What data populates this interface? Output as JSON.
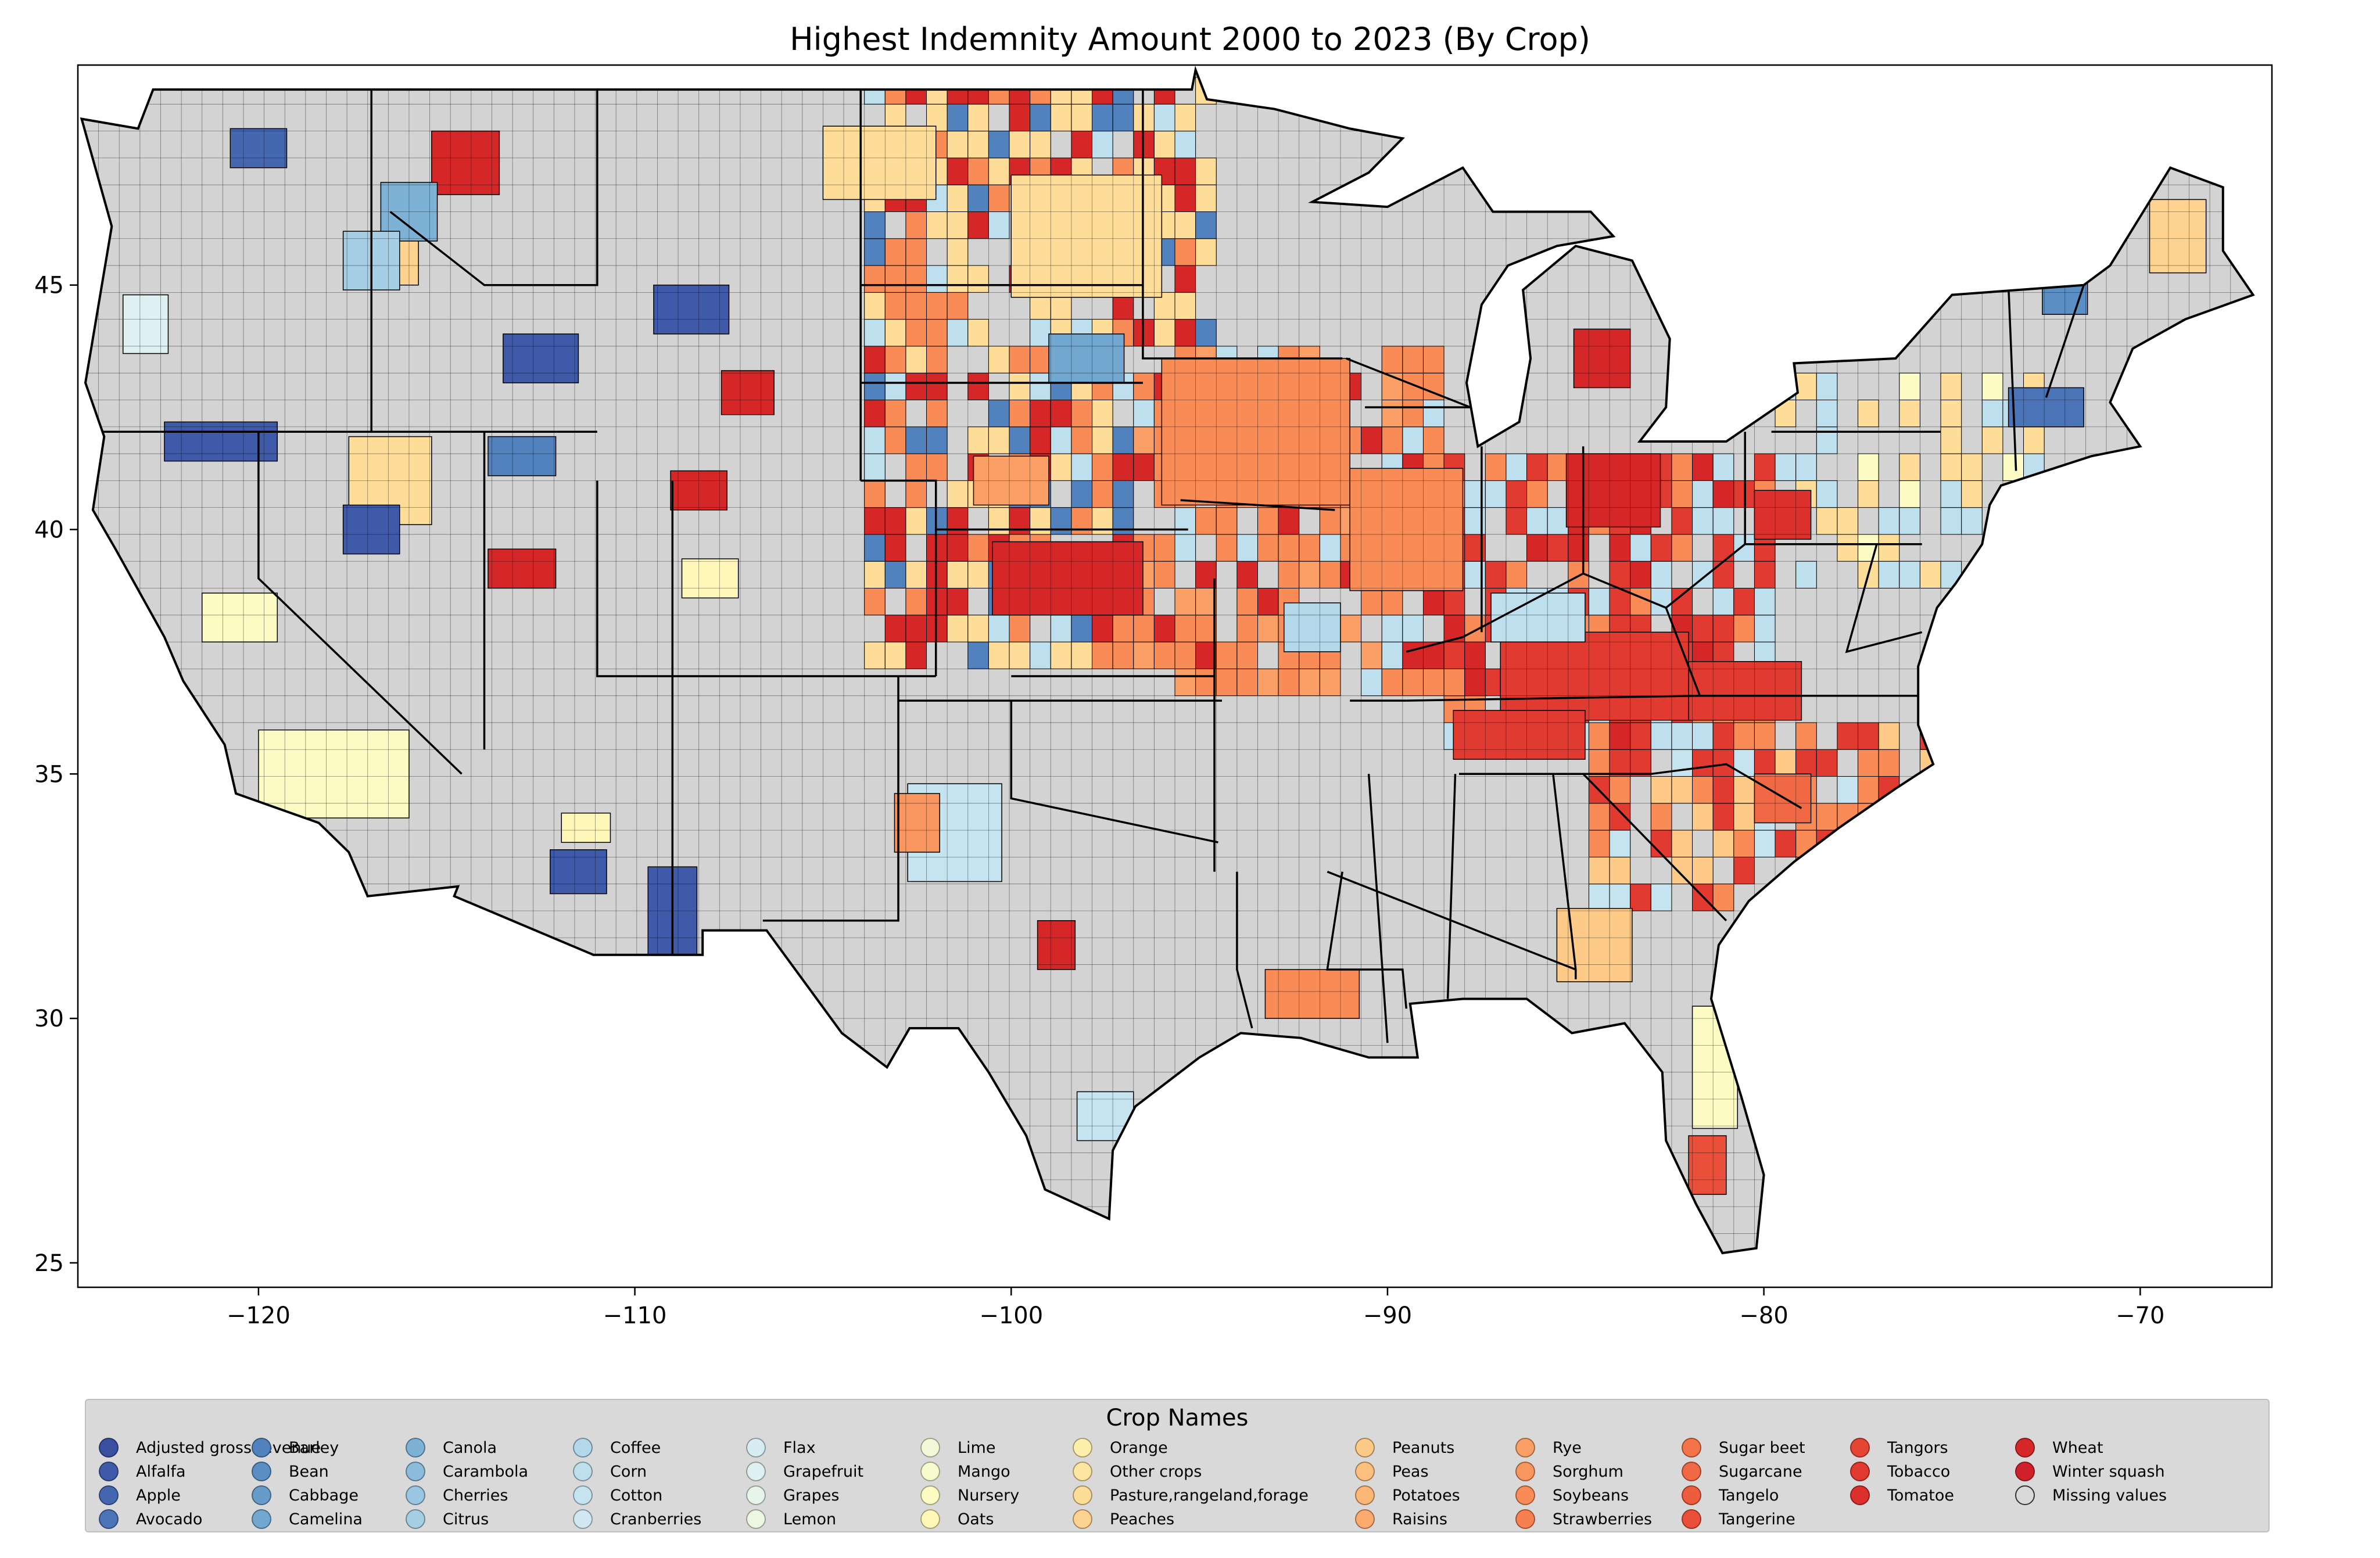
{
  "chart_data": {
    "type": "choropleth",
    "title": "Highest Indemnity Amount 2000 to 2023 (By Crop)",
    "xlabel": "",
    "ylabel": "",
    "xlim": [
      -124.8,
      -66.5
    ],
    "ylim": [
      24.5,
      49.5
    ],
    "x_ticks": [
      -120,
      -110,
      -100,
      -90,
      -80,
      -70
    ],
    "x_tick_labels": [
      "−120",
      "−110",
      "−100",
      "−90",
      "−80",
      "−70"
    ],
    "y_ticks": [
      25,
      30,
      35,
      40,
      45
    ],
    "y_tick_labels": [
      "25",
      "30",
      "35",
      "40",
      "45"
    ],
    "grid": false,
    "legend": {
      "title": "Crop Names",
      "placement": "bottom",
      "columns": 10,
      "entries": [
        {
          "name": "Adjusted gross revenue",
          "color": "#3b4fa0"
        },
        {
          "name": "Alfalfa",
          "color": "#3f5aa8"
        },
        {
          "name": "Apple",
          "color": "#4567b0"
        },
        {
          "name": "Avocado",
          "color": "#4a74b7"
        },
        {
          "name": "Barley",
          "color": "#5282be"
        },
        {
          "name": "Bean",
          "color": "#5b8fc4"
        },
        {
          "name": "Cabbage",
          "color": "#679cca"
        },
        {
          "name": "Camelina",
          "color": "#72a7d0"
        },
        {
          "name": "Canola",
          "color": "#7db2d6"
        },
        {
          "name": "Carambola",
          "color": "#8bbcdb"
        },
        {
          "name": "Cherries",
          "color": "#99c6e0"
        },
        {
          "name": "Citrus",
          "color": "#a6cfe5"
        },
        {
          "name": "Coffee",
          "color": "#b2d8ea"
        },
        {
          "name": "Corn",
          "color": "#bddfee"
        },
        {
          "name": "Cotton",
          "color": "#c6e4f0"
        },
        {
          "name": "Cranberries",
          "color": "#cfe8f2"
        },
        {
          "name": "Flax",
          "color": "#d8ecf3"
        },
        {
          "name": "Grapefruit",
          "color": "#dff0f0"
        },
        {
          "name": "Grapes",
          "color": "#e6f4ea"
        },
        {
          "name": "Lemon",
          "color": "#ecf6e2"
        },
        {
          "name": "Lime",
          "color": "#f3f9d8"
        },
        {
          "name": "Mango",
          "color": "#f8fbcd"
        },
        {
          "name": "Nursery",
          "color": "#fcfbc3"
        },
        {
          "name": "Oats",
          "color": "#fff7b8"
        },
        {
          "name": "Orange",
          "color": "#ffefac"
        },
        {
          "name": "Other crops",
          "color": "#fee6a2"
        },
        {
          "name": "Pasture,rangeland,forage",
          "color": "#fedd99"
        },
        {
          "name": "Peaches",
          "color": "#fdd38f"
        },
        {
          "name": "Peanuts",
          "color": "#fdca87"
        },
        {
          "name": "Peas",
          "color": "#fcc07e"
        },
        {
          "name": "Potatoes",
          "color": "#fcb676"
        },
        {
          "name": "Raisins",
          "color": "#fbab6e"
        },
        {
          "name": "Rye",
          "color": "#faa066"
        },
        {
          "name": "Sorghum",
          "color": "#f9955e"
        },
        {
          "name": "Soybeans",
          "color": "#f88b56"
        },
        {
          "name": "Strawberries",
          "color": "#f6804f"
        },
        {
          "name": "Sugar beet",
          "color": "#f47449"
        },
        {
          "name": "Sugarcane",
          "color": "#f16844"
        },
        {
          "name": "Tangelo",
          "color": "#ee5c3e"
        },
        {
          "name": "Tangerine",
          "color": "#ea5039"
        },
        {
          "name": "Tangors",
          "color": "#e64534"
        },
        {
          "name": "Tobacco",
          "color": "#e13a30"
        },
        {
          "name": "Tomatoe",
          "color": "#dc302c"
        },
        {
          "name": "Wheat",
          "color": "#d62728"
        },
        {
          "name": "Winter squash",
          "color": "#d0212a"
        },
        {
          "name": "Missing values",
          "color": "#d3d3d3"
        }
      ]
    },
    "regions": [
      {
        "crop": "Tobacco",
        "lon": -84.5,
        "lat": 37.0,
        "w": 5.0,
        "h": 1.8
      },
      {
        "crop": "Tobacco",
        "lon": -80.5,
        "lat": 36.7,
        "w": 3.0,
        "h": 1.2
      },
      {
        "crop": "Tobacco",
        "lon": -86.5,
        "lat": 35.8,
        "w": 3.5,
        "h": 1.0
      },
      {
        "crop": "Soybeans",
        "lon": -93.5,
        "lat": 42.0,
        "w": 5.0,
        "h": 3.0
      },
      {
        "crop": "Soybeans",
        "lon": -89.5,
        "lat": 40.0,
        "w": 3.0,
        "h": 2.5
      },
      {
        "crop": "Soybeans",
        "lon": -92.0,
        "lat": 30.5,
        "w": 2.5,
        "h": 1.0
      },
      {
        "crop": "Corn",
        "lon": -86.0,
        "lat": 38.2,
        "w": 2.5,
        "h": 1.0
      },
      {
        "crop": "Wheat",
        "lon": -98.5,
        "lat": 39.0,
        "w": 4.0,
        "h": 1.5
      },
      {
        "crop": "Wheat",
        "lon": -84.0,
        "lat": 40.8,
        "w": 2.5,
        "h": 1.5
      },
      {
        "crop": "Wheat",
        "lon": -108.3,
        "lat": 40.8,
        "w": 1.5,
        "h": 0.8
      },
      {
        "crop": "Wheat",
        "lon": -107.0,
        "lat": 42.8,
        "w": 1.4,
        "h": 0.9
      },
      {
        "crop": "Wheat",
        "lon": -113.0,
        "lat": 39.2,
        "w": 1.8,
        "h": 0.8
      },
      {
        "crop": "Wheat",
        "lon": -114.5,
        "lat": 47.5,
        "w": 1.8,
        "h": 1.3
      },
      {
        "crop": "Wheat",
        "lon": -98.8,
        "lat": 31.5,
        "w": 1.0,
        "h": 1.0
      },
      {
        "crop": "Wheat",
        "lon": -84.3,
        "lat": 43.5,
        "w": 1.5,
        "h": 1.2
      },
      {
        "crop": "Pasture,rangeland,forage",
        "lon": -98.0,
        "lat": 46.0,
        "w": 4.0,
        "h": 2.5
      },
      {
        "crop": "Pasture,rangeland,forage",
        "lon": -103.5,
        "lat": 47.5,
        "w": 3.0,
        "h": 1.5
      },
      {
        "crop": "Pasture,rangeland,forage",
        "lon": -116.5,
        "lat": 41.0,
        "w": 2.2,
        "h": 1.8
      },
      {
        "crop": "Nursery",
        "lon": -118.0,
        "lat": 35.0,
        "w": 4.0,
        "h": 1.8
      },
      {
        "crop": "Nursery",
        "lon": -120.5,
        "lat": 38.2,
        "w": 2.0,
        "h": 1.0
      },
      {
        "crop": "Nursery",
        "lon": -81.3,
        "lat": 29.0,
        "w": 1.2,
        "h": 2.5
      },
      {
        "crop": "Alfalfa",
        "lon": -121.0,
        "lat": 41.8,
        "w": 3.0,
        "h": 0.8
      },
      {
        "crop": "Alfalfa",
        "lon": -117.0,
        "lat": 40.0,
        "w": 1.5,
        "h": 1.0
      },
      {
        "crop": "Alfalfa",
        "lon": -108.5,
        "lat": 44.5,
        "w": 2.0,
        "h": 1.0
      },
      {
        "crop": "Alfalfa",
        "lon": -112.5,
        "lat": 43.5,
        "w": 2.0,
        "h": 1.0
      },
      {
        "crop": "Alfalfa",
        "lon": -109.0,
        "lat": 32.2,
        "w": 1.3,
        "h": 1.8
      },
      {
        "crop": "Alfalfa",
        "lon": -111.5,
        "lat": 33.0,
        "w": 1.5,
        "h": 0.9
      },
      {
        "crop": "Apple",
        "lon": -120.0,
        "lat": 47.8,
        "w": 1.5,
        "h": 0.8
      },
      {
        "crop": "Barley",
        "lon": -113.0,
        "lat": 41.5,
        "w": 1.8,
        "h": 0.8
      },
      {
        "crop": "Cotton",
        "lon": -101.5,
        "lat": 33.8,
        "w": 2.5,
        "h": 2.0
      },
      {
        "crop": "Cotton",
        "lon": -97.5,
        "lat": 28.0,
        "w": 1.5,
        "h": 1.0
      },
      {
        "crop": "Oats",
        "lon": -108.0,
        "lat": 39.0,
        "w": 1.5,
        "h": 0.8
      },
      {
        "crop": "Oats",
        "lon": -111.3,
        "lat": 33.9,
        "w": 1.3,
        "h": 0.6
      },
      {
        "crop": "Peanuts",
        "lon": -84.5,
        "lat": 31.5,
        "w": 2.0,
        "h": 1.5
      },
      {
        "crop": "Peaches",
        "lon": -69.0,
        "lat": 46.0,
        "w": 1.5,
        "h": 1.5
      },
      {
        "crop": "Peaches",
        "lon": -116.5,
        "lat": 45.5,
        "w": 1.5,
        "h": 1.0
      },
      {
        "crop": "Canola",
        "lon": -116.0,
        "lat": 46.5,
        "w": 1.5,
        "h": 1.2
      },
      {
        "crop": "Citrus",
        "lon": -117.0,
        "lat": 45.5,
        "w": 1.5,
        "h": 1.2
      },
      {
        "crop": "Coffee",
        "lon": -92.0,
        "lat": 38.0,
        "w": 1.5,
        "h": 1.0
      },
      {
        "crop": "Grapefruit",
        "lon": -123.0,
        "lat": 44.2,
        "w": 1.2,
        "h": 1.2
      },
      {
        "crop": "Sugarcane",
        "lon": -79.5,
        "lat": 34.5,
        "w": 1.5,
        "h": 1.0
      },
      {
        "crop": "Tangerine",
        "lon": -81.5,
        "lat": 27.0,
        "w": 1.0,
        "h": 1.2
      },
      {
        "crop": "Sorghum",
        "lon": -102.5,
        "lat": 34.0,
        "w": 1.2,
        "h": 1.2
      },
      {
        "crop": "Rye",
        "lon": -100.0,
        "lat": 41.0,
        "w": 2.0,
        "h": 1.0
      },
      {
        "crop": "Avocado",
        "lon": -72.5,
        "lat": 42.5,
        "w": 2.0,
        "h": 0.8
      },
      {
        "crop": "Bean",
        "lon": -72.0,
        "lat": 45.0,
        "w": 1.2,
        "h": 1.2
      },
      {
        "crop": "Tomatoe",
        "lon": -79.5,
        "lat": 40.3,
        "w": 1.5,
        "h": 1.0
      },
      {
        "crop": "Camelina",
        "lon": -98.0,
        "lat": 43.5,
        "w": 2.0,
        "h": 1.0
      }
    ]
  }
}
